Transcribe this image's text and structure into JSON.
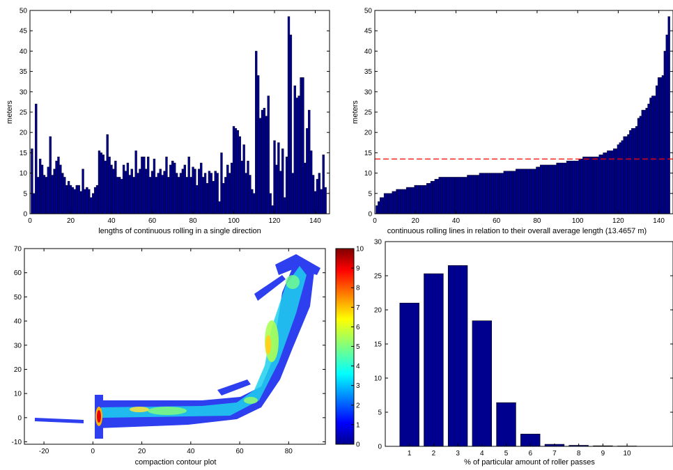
{
  "colors": {
    "bar_fill": "#00008f",
    "bar_edge": "#000000",
    "mean_line": "#ff0000",
    "axes": "#000000",
    "background": "#ffffff"
  },
  "chart_data": [
    {
      "id": "top-left",
      "type": "bar",
      "xlabel": "lengths of continuous rolling in a single direction",
      "ylabel": "meters",
      "xlim": [
        0,
        147
      ],
      "ylim": [
        0,
        50
      ],
      "xticks": [
        0,
        20,
        40,
        60,
        80,
        100,
        120,
        140
      ],
      "yticks": [
        0,
        5,
        10,
        15,
        20,
        25,
        30,
        35,
        40,
        45,
        50
      ],
      "grid": false,
      "values": [
        16,
        5,
        27,
        9,
        13.5,
        12,
        9.5,
        9,
        11.5,
        19,
        9.5,
        11,
        13,
        14,
        12,
        10,
        9,
        7,
        8,
        7,
        6.5,
        6,
        7,
        7,
        5.5,
        11,
        6,
        6.5,
        6,
        4,
        5,
        6.5,
        7,
        15.5,
        15,
        14.5,
        13,
        19.5,
        14,
        12,
        11,
        13,
        9,
        9,
        8.5,
        12,
        10.5,
        12.5,
        9.5,
        11,
        9,
        15.5,
        10,
        11,
        14,
        14,
        11,
        14,
        9,
        10.5,
        13.5,
        9,
        10,
        11,
        9.5,
        10.5,
        14,
        9,
        12,
        13,
        12.5,
        10,
        9,
        10,
        11,
        12,
        9,
        14,
        9,
        11.5,
        11,
        7,
        11,
        12.5,
        9,
        10,
        7.5,
        10.5,
        10,
        8,
        10.5,
        10,
        3,
        15,
        7.5,
        9,
        12,
        10,
        12.5,
        21.5,
        21,
        20.5,
        19,
        13,
        17,
        10,
        13,
        9.5,
        6,
        5,
        40,
        34,
        23.5,
        25.5,
        26,
        24,
        29,
        5,
        2,
        18,
        12,
        17.5,
        10.5,
        16,
        4,
        14,
        48.5,
        44,
        10,
        31.5,
        28.5,
        29,
        33.5,
        33.5,
        12.5,
        21,
        25.5,
        15.5,
        9.5,
        5.5,
        8.5,
        10,
        6,
        14.5,
        6.5
      ]
    },
    {
      "id": "top-right",
      "type": "bar",
      "xlabel": "continuous rolling lines in relation to their overall average length (13.4657 m)",
      "ylabel": "meters",
      "xlim": [
        0,
        147
      ],
      "ylim": [
        0,
        50
      ],
      "xticks": [
        0,
        20,
        40,
        60,
        80,
        100,
        120,
        140
      ],
      "yticks": [
        0,
        5,
        10,
        15,
        20,
        25,
        30,
        35,
        40,
        45,
        50
      ],
      "grid": false,
      "mean_line": 13.4657,
      "values_sorted": true
    },
    {
      "id": "bottom-left",
      "type": "heatmap",
      "xlabel": "compaction contour plot",
      "ylabel": "",
      "xlim": [
        -28,
        95
      ],
      "ylim": [
        -11,
        70
      ],
      "xticks": [
        -20,
        0,
        20,
        40,
        60,
        80
      ],
      "yticks": [
        -10,
        0,
        10,
        20,
        30,
        40,
        50,
        60,
        70
      ],
      "colorbar": {
        "range": [
          0,
          10
        ],
        "ticks": [
          0,
          1,
          2,
          3,
          4,
          5,
          6,
          7,
          8,
          9,
          10
        ],
        "colormap": "jet"
      }
    },
    {
      "id": "bottom-right",
      "type": "bar",
      "xlabel": "% of particular amount of roller passes",
      "ylabel": "",
      "categories": [
        "1",
        "2",
        "3",
        "4",
        "5",
        "6",
        "7",
        "8",
        "9",
        "10"
      ],
      "values": [
        21,
        25.3,
        26.5,
        18.4,
        6.4,
        1.8,
        0.3,
        0.15,
        0.08,
        0.05
      ],
      "xlim": [
        0,
        11.9
      ],
      "ylim": [
        0,
        30
      ],
      "yticks": [
        0,
        5,
        10,
        15,
        20,
        25,
        30
      ],
      "grid": false
    }
  ]
}
